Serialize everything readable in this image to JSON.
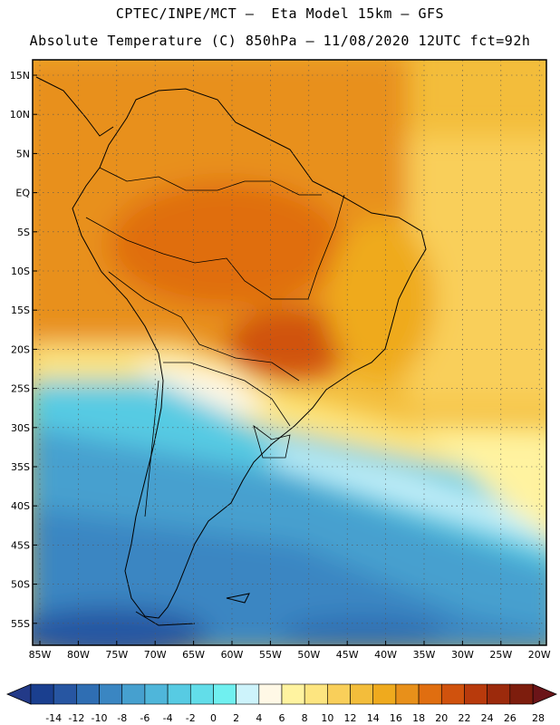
{
  "header": {
    "line1": "CPTEC/INPE/MCT –  Eta Model 15km – GFS",
    "line2": "Absolute Temperature (C) 850hPa – 11/08/2020 12UTC fct=92h"
  },
  "lat_axis": {
    "labels": [
      "15N",
      "10N",
      "5N",
      "EQ",
      "5S",
      "10S",
      "15S",
      "20S",
      "25S",
      "30S",
      "35S",
      "40S",
      "45S",
      "50S",
      "55S"
    ],
    "values": [
      15,
      10,
      5,
      0,
      -5,
      -10,
      -15,
      -20,
      -25,
      -30,
      -35,
      -40,
      -45,
      -50,
      -55
    ]
  },
  "lon_axis": {
    "labels": [
      "85W",
      "80W",
      "75W",
      "70W",
      "65W",
      "60W",
      "55W",
      "50W",
      "45W",
      "40W",
      "35W",
      "30W",
      "25W",
      "20W"
    ],
    "values": [
      -85,
      -80,
      -75,
      -70,
      -65,
      -60,
      -55,
      -50,
      -45,
      -40,
      -35,
      -30,
      -25,
      -20
    ]
  },
  "colorbar": {
    "labels": [
      "-14",
      "-12",
      "-10",
      "-8",
      "-6",
      "-4",
      "-2",
      "0",
      "2",
      "4",
      "6",
      "8",
      "10",
      "12",
      "14",
      "16",
      "18",
      "20",
      "22",
      "24",
      "26",
      "28"
    ],
    "colors": [
      "#1a3f8f",
      "#2756a2",
      "#2f6eb3",
      "#3a86c2",
      "#46a0cf",
      "#4fb6da",
      "#57cbe3",
      "#62dde9",
      "#70f0f0",
      "#cdf3fb",
      "#fff8e6",
      "#fff3a0",
      "#fde580",
      "#f9cf5a",
      "#f3bd3b",
      "#efaa1e",
      "#e8901a",
      "#e06e10",
      "#d0520d",
      "#b83a0c",
      "#9c2a0c",
      "#7d1d0d"
    ],
    "under_color": "#233a88",
    "over_color": "#6b1418"
  }
}
